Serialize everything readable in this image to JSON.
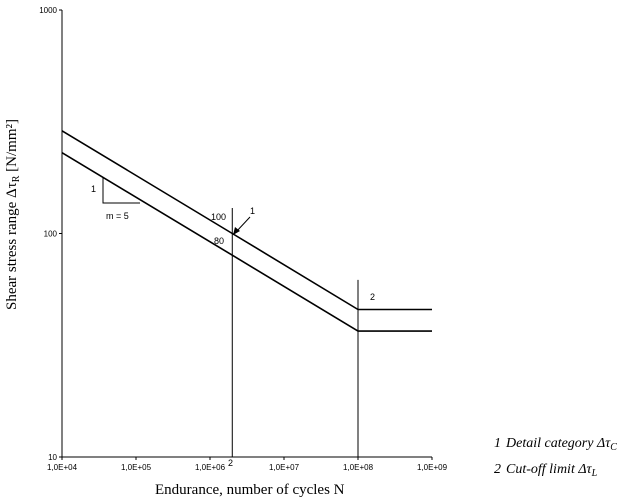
{
  "chart_data": {
    "type": "line",
    "scale": "log-log",
    "xlabel": "Endurance, number of cycles N",
    "ylabel_main": "Shear stress range Δτ",
    "ylabel_sub": "R",
    "ylabel_unit": " [N/mm²]",
    "xlim": [
      10000,
      1000000000
    ],
    "ylim": [
      10,
      1000
    ],
    "x_ticks": [
      {
        "value": 10000,
        "label": "1,0E+04"
      },
      {
        "value": 100000,
        "label": "1,0E+05"
      },
      {
        "value": 1000000,
        "label": "1,0E+06"
      },
      {
        "value": 10000000,
        "label": "1,0E+07"
      },
      {
        "value": 100000000,
        "label": "1,0E+08"
      },
      {
        "value": 1000000000,
        "label": "1,0E+09"
      }
    ],
    "y_ticks": [
      {
        "value": 10,
        "label": "10"
      },
      {
        "value": 100,
        "label": "100"
      },
      {
        "value": 1000,
        "label": "1000"
      }
    ],
    "series": [
      {
        "name": "Detail category 100",
        "x": [
          10000,
          2000000,
          100000000,
          1000000000
        ],
        "y": [
          288,
          100,
          45.7,
          45.7
        ]
      },
      {
        "name": "Detail category 80",
        "x": [
          10000,
          2000000,
          100000000,
          1000000000
        ],
        "y": [
          230,
          80,
          36.6,
          36.6
        ]
      }
    ],
    "vertical_lines": [
      {
        "x": 2000000,
        "y_from": 10,
        "y_to": 130,
        "label": "2"
      },
      {
        "x": 100000000,
        "y_from": 10,
        "y_to": 62
      }
    ],
    "slope_triangle": {
      "label": "1",
      "slope_label": "m = 5"
    },
    "annotations": [
      {
        "text": "100"
      },
      {
        "text": "80"
      },
      {
        "text": "1"
      },
      {
        "text": "2"
      }
    ],
    "legend": [
      {
        "number": "1",
        "text": "Detail category ",
        "symbol": "Δτ",
        "sub": "C"
      },
      {
        "number": "2",
        "text": "Cut-off limit ",
        "symbol": "Δτ",
        "sub": "L"
      }
    ]
  }
}
